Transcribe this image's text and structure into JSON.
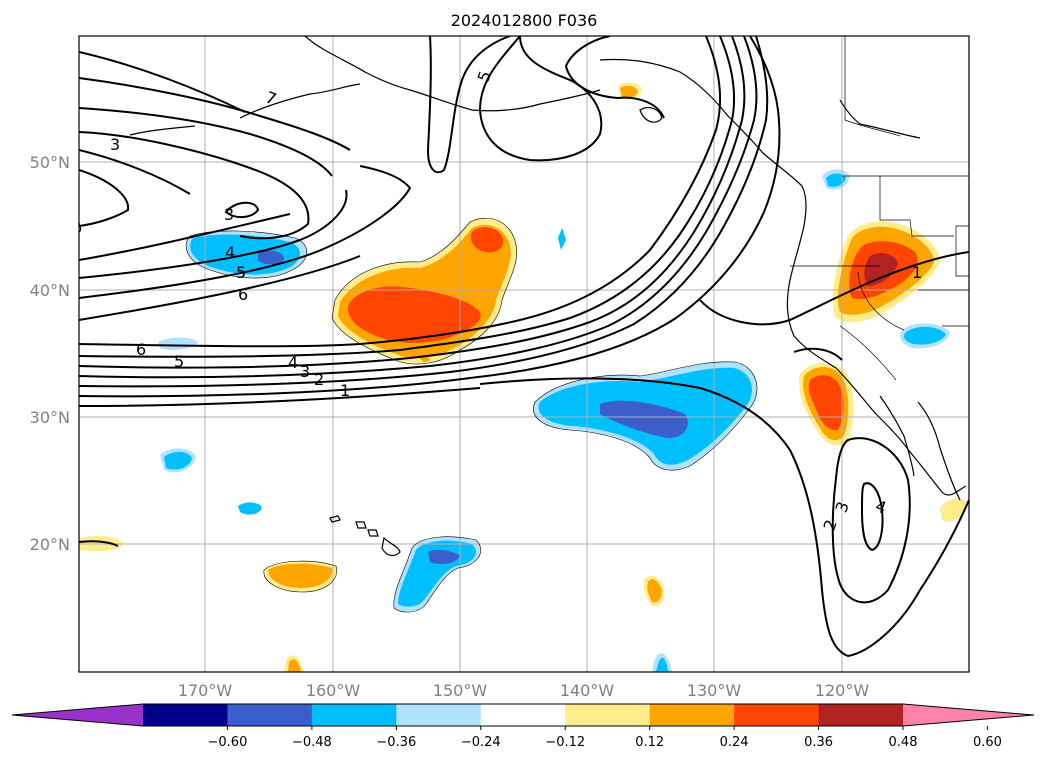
{
  "title": "2024012800 F036",
  "lat_ticks": [
    "50°N",
    "40°N",
    "30°N",
    "20°N"
  ],
  "lon_ticks": [
    "170°W",
    "160°W",
    "150°W",
    "140°W",
    "130°W",
    "120°W"
  ],
  "contour_labels": [
    "3",
    "3",
    "4",
    "5",
    "6",
    "6",
    "5",
    "4",
    "3",
    "2",
    "1",
    "5",
    "7",
    "1",
    "2",
    "3",
    "4"
  ],
  "colorbar": {
    "ticks": [
      "−0.60",
      "−0.48",
      "−0.36",
      "−0.24",
      "−0.12",
      "0.12",
      "0.24",
      "0.36",
      "0.48",
      "0.60"
    ],
    "colors": [
      "#9932cc",
      "#00008b",
      "#3a5fcd",
      "#00bfff",
      "#b0e2ff",
      "#ffffff",
      "#ffec8b",
      "#ffa500",
      "#ff4500",
      "#b22222",
      "#ff82ab"
    ]
  }
}
